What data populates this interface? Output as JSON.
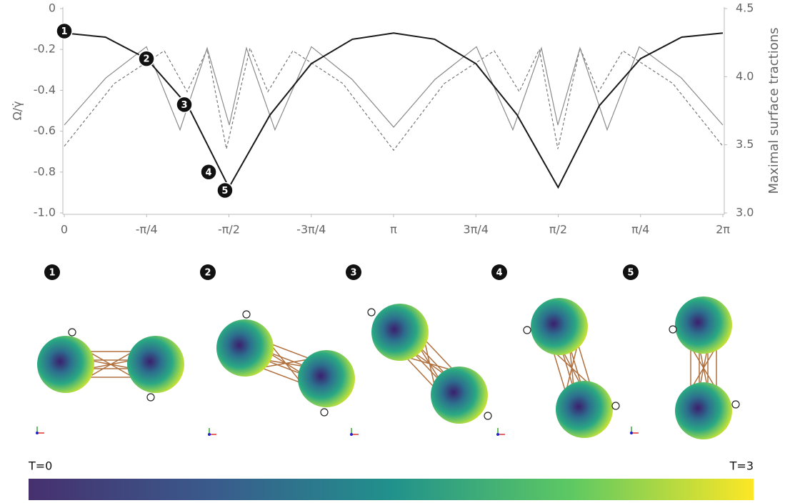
{
  "chart_data": {
    "type": "line",
    "y_label": "Ω/γ̇",
    "y2_label": "Maximal surface tractions",
    "xlim": [
      0,
      6.2832
    ],
    "xticks": [
      0,
      {
        "value": 0.7854,
        "label": "-π/4"
      },
      {
        "value": 1.5708,
        "label": "-π/2"
      },
      {
        "value": 2.3562,
        "label": "-3π/4"
      },
      {
        "value": 3.1416,
        "label": "π"
      },
      {
        "value": 3.927,
        "label": "3π/4"
      },
      {
        "value": 4.7124,
        "label": "π/2"
      },
      {
        "value": 5.4978,
        "label": "π/4"
      },
      {
        "value": 6.2832,
        "label": "2π"
      }
    ],
    "ylim": [
      -1,
      0
    ],
    "yticks": [
      0,
      -0.2,
      -0.4,
      -0.6,
      -0.8,
      {
        "value": -1,
        "label": "-1.0"
      }
    ],
    "y2lim": [
      3,
      4.5
    ],
    "y2ticks": [
      {
        "value": 3,
        "label": "3.0"
      },
      3.5,
      {
        "value": 4,
        "label": "4.0"
      },
      4.5
    ],
    "series": [
      {
        "axis": "y",
        "color": "#1a1a1a",
        "linestyle": "solid",
        "x": [
          0,
          0.393,
          0.785,
          1.178,
          1.571,
          1.963,
          2.356,
          2.749,
          3.142,
          3.534,
          3.927,
          4.32,
          4.712,
          5.105,
          5.498,
          5.89,
          6.283
        ],
        "values": [
          -0.12,
          -0.14,
          -0.245,
          -0.475,
          -0.875,
          -0.52,
          -0.27,
          -0.15,
          -0.12,
          -0.15,
          -0.27,
          -0.52,
          -0.875,
          -0.475,
          -0.245,
          -0.14,
          -0.12
        ]
      },
      {
        "axis": "y2",
        "color": "#8a8a8a",
        "linestyle": "solid",
        "x": [
          0,
          0.395,
          0.784,
          1.104,
          1.363,
          1.574,
          1.738,
          2.01,
          2.358,
          2.746,
          3.142,
          3.537,
          3.932,
          4.28,
          4.552,
          4.709,
          4.92,
          5.179,
          5.486,
          5.888,
          6.283
        ],
        "values": [
          3.645,
          3.99,
          4.22,
          3.61,
          4.21,
          3.645,
          4.21,
          3.61,
          4.22,
          3.98,
          3.63,
          3.98,
          4.22,
          3.61,
          4.21,
          3.645,
          4.21,
          3.61,
          4.22,
          3.99,
          3.645
        ]
      },
      {
        "axis": "y2",
        "color": "#777777",
        "linestyle": "dashed",
        "x": [
          0,
          0.477,
          0.954,
          1.172,
          1.363,
          1.547,
          1.772,
          1.942,
          2.181,
          2.658,
          3.142,
          3.625,
          4.102,
          4.341,
          4.532,
          4.709,
          4.92,
          5.097,
          5.329,
          5.806,
          6.283
        ],
        "values": [
          3.49,
          3.95,
          4.19,
          3.89,
          4.2,
          3.47,
          4.21,
          3.89,
          4.19,
          3.95,
          3.46,
          3.95,
          4.19,
          3.89,
          4.2,
          3.47,
          4.21,
          3.89,
          4.19,
          3.95,
          3.49
        ]
      }
    ],
    "annotations": [
      {
        "label": "1",
        "x": 0,
        "y": -0.11
      },
      {
        "label": "2",
        "x": 0.784,
        "y": -0.245
      },
      {
        "label": "3",
        "x": 1.145,
        "y": -0.47
      },
      {
        "label": "4",
        "x": 1.377,
        "y": -0.8
      },
      {
        "label": "5",
        "x": 1.533,
        "y": -0.89
      }
    ],
    "colorbar": {
      "min_label": "T=0",
      "max_label": "T=3"
    }
  }
}
